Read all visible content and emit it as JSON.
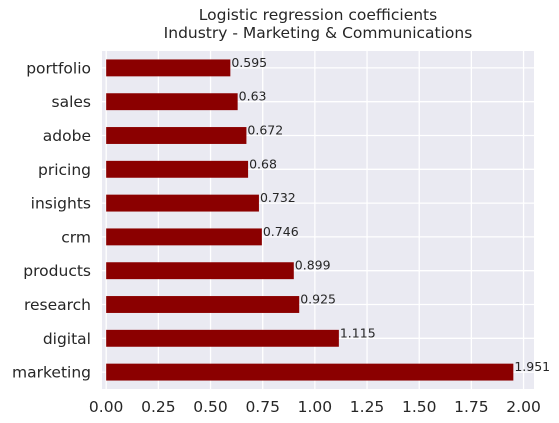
{
  "chart_data": {
    "type": "bar",
    "orientation": "horizontal",
    "title": "Logistic regression coefficients\nIndustry - Marketing & Communications",
    "title_lines": [
      "Logistic regression coefficients",
      "Industry - Marketing & Communications"
    ],
    "categories": [
      "portfolio",
      "sales",
      "adobe",
      "pricing",
      "insights",
      "crm",
      "products",
      "research",
      "digital",
      "marketing"
    ],
    "values": [
      0.595,
      0.63,
      0.672,
      0.68,
      0.732,
      0.746,
      0.899,
      0.925,
      1.115,
      1.951
    ],
    "data_labels": [
      "0.595",
      "0.63",
      "0.672",
      "0.68",
      "0.732",
      "0.746",
      "0.899",
      "0.925",
      "1.115",
      "1.951"
    ],
    "xlim": [
      -0.02,
      2.05
    ],
    "xticks": [
      "0.00",
      "0.25",
      "0.50",
      "0.75",
      "1.00",
      "1.25",
      "1.50",
      "1.75",
      "2.00"
    ],
    "xtick_values": [
      0,
      0.25,
      0.5,
      0.75,
      1.0,
      1.25,
      1.5,
      1.75,
      2.0
    ],
    "xlabel": "",
    "ylabel": "",
    "grid": true,
    "legend": "none",
    "colors": {
      "bar": "#8b0000",
      "plot_background": "#eaeaf2",
      "grid": "#ffffff",
      "text": "#262626"
    }
  }
}
